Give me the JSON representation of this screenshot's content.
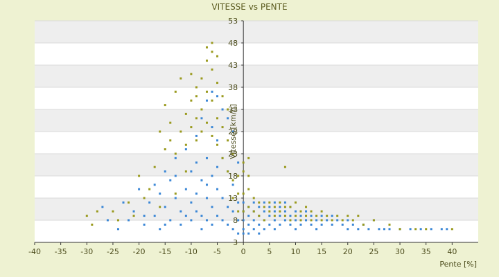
{
  "chart_data": {
    "type": "scatter",
    "title": "VITESSE vs PENTE",
    "xlabel": "Pente [%]",
    "ylabel": "Vitesse [km/h]",
    "xlim": [
      -40,
      45
    ],
    "ylim": [
      3,
      53
    ],
    "x_ticks": [
      "-40",
      "-35",
      "-30",
      "-25",
      "-20",
      "-15",
      "-10",
      "-5",
      "0",
      "5",
      "10",
      "15",
      "20",
      "25",
      "30",
      "35",
      "40"
    ],
    "y_ticks": [
      "3",
      "8",
      "13",
      "18",
      "23",
      "28",
      "33",
      "38",
      "43",
      "48",
      "53"
    ],
    "grid": true,
    "legend": "none",
    "colors": {
      "background": "#eef2d2",
      "plot_band_light": "#ffffff",
      "plot_band_dark": "#eeeeee",
      "series_blue": "#3b87d6",
      "series_olive": "#9a9a1e"
    },
    "series": [
      {
        "color": "#3b87d6",
        "points": [
          [
            -24,
            6
          ],
          [
            -22,
            8
          ],
          [
            -21,
            10
          ],
          [
            -19,
            7
          ],
          [
            -18,
            12
          ],
          [
            -17,
            9
          ],
          [
            -16,
            14
          ],
          [
            -16,
            6
          ],
          [
            -15,
            19
          ],
          [
            -15,
            11
          ],
          [
            -14,
            8
          ],
          [
            -14,
            17
          ],
          [
            -13,
            13
          ],
          [
            -13,
            22
          ],
          [
            -12,
            10
          ],
          [
            -12,
            7
          ],
          [
            -11,
            15
          ],
          [
            -11,
            24
          ],
          [
            -10,
            12
          ],
          [
            -10,
            19
          ],
          [
            -10,
            8
          ],
          [
            -9,
            27
          ],
          [
            -9,
            14
          ],
          [
            -9,
            10
          ],
          [
            -8,
            31
          ],
          [
            -8,
            17
          ],
          [
            -8,
            9
          ],
          [
            -8,
            6
          ],
          [
            -7,
            35
          ],
          [
            -7,
            22
          ],
          [
            -7,
            13
          ],
          [
            -7,
            8
          ],
          [
            -6,
            37
          ],
          [
            -6,
            29
          ],
          [
            -6,
            18
          ],
          [
            -6,
            11
          ],
          [
            -6,
            7
          ],
          [
            -5,
            36
          ],
          [
            -5,
            26
          ],
          [
            -5,
            15
          ],
          [
            -5,
            9
          ],
          [
            -4,
            33
          ],
          [
            -4,
            22
          ],
          [
            -4,
            13
          ],
          [
            -4,
            8
          ],
          [
            -3,
            31
          ],
          [
            -3,
            19
          ],
          [
            -3,
            11
          ],
          [
            -3,
            7
          ],
          [
            -2,
            28
          ],
          [
            -2,
            16
          ],
          [
            -2,
            10
          ],
          [
            -2,
            6
          ],
          [
            -1,
            21
          ],
          [
            -1,
            12
          ],
          [
            -1,
            8
          ],
          [
            -1,
            5
          ],
          [
            0,
            12
          ],
          [
            0,
            10
          ],
          [
            0,
            8
          ],
          [
            0,
            6
          ],
          [
            0,
            5
          ],
          [
            1,
            11
          ],
          [
            1,
            9
          ],
          [
            1,
            7
          ],
          [
            1,
            5
          ],
          [
            2,
            12
          ],
          [
            2,
            10
          ],
          [
            2,
            8
          ],
          [
            2,
            6
          ],
          [
            3,
            11
          ],
          [
            3,
            9
          ],
          [
            3,
            7
          ],
          [
            3,
            5
          ],
          [
            4,
            12
          ],
          [
            4,
            10
          ],
          [
            4,
            8
          ],
          [
            4,
            6
          ],
          [
            5,
            11
          ],
          [
            5,
            9
          ],
          [
            5,
            7
          ],
          [
            6,
            12
          ],
          [
            6,
            10
          ],
          [
            6,
            8
          ],
          [
            6,
            6
          ],
          [
            7,
            11
          ],
          [
            7,
            9
          ],
          [
            7,
            7
          ],
          [
            8,
            12
          ],
          [
            8,
            10
          ],
          [
            8,
            8
          ],
          [
            9,
            11
          ],
          [
            9,
            9
          ],
          [
            9,
            7
          ],
          [
            10,
            10
          ],
          [
            10,
            8
          ],
          [
            10,
            6
          ],
          [
            11,
            9
          ],
          [
            11,
            7
          ],
          [
            12,
            10
          ],
          [
            12,
            8
          ],
          [
            13,
            9
          ],
          [
            13,
            7
          ],
          [
            14,
            8
          ],
          [
            14,
            6
          ],
          [
            15,
            9
          ],
          [
            15,
            7
          ],
          [
            16,
            8
          ],
          [
            17,
            7
          ],
          [
            17,
            9
          ],
          [
            18,
            8
          ],
          [
            19,
            7
          ],
          [
            20,
            8
          ],
          [
            20,
            6
          ],
          [
            21,
            7
          ],
          [
            22,
            6
          ],
          [
            23,
            7
          ],
          [
            24,
            6
          ],
          [
            25,
            8
          ],
          [
            26,
            6
          ],
          [
            27,
            6
          ],
          [
            28,
            6
          ],
          [
            30,
            6
          ],
          [
            32,
            6
          ],
          [
            34,
            6
          ],
          [
            36,
            6
          ],
          [
            38,
            6
          ],
          [
            39,
            6
          ],
          [
            -27,
            11
          ],
          [
            -26,
            8
          ],
          [
            -23,
            12
          ],
          [
            -20,
            15
          ],
          [
            -19,
            9
          ],
          [
            -17,
            16
          ],
          [
            -15,
            7
          ],
          [
            -13,
            18
          ],
          [
            -11,
            9
          ],
          [
            -9,
            21
          ],
          [
            -7,
            16
          ],
          [
            -5,
            20
          ]
        ]
      },
      {
        "color": "#9a9a1e",
        "points": [
          [
            -30,
            9
          ],
          [
            -29,
            7
          ],
          [
            -25,
            10
          ],
          [
            -22,
            12
          ],
          [
            -20,
            18
          ],
          [
            -18,
            15
          ],
          [
            -17,
            20
          ],
          [
            -16,
            28
          ],
          [
            -15,
            24
          ],
          [
            -15,
            34
          ],
          [
            -14,
            26
          ],
          [
            -14,
            30
          ],
          [
            -13,
            23
          ],
          [
            -13,
            37
          ],
          [
            -12,
            28
          ],
          [
            -12,
            40
          ],
          [
            -11,
            32
          ],
          [
            -11,
            25
          ],
          [
            -10,
            35
          ],
          [
            -10,
            29
          ],
          [
            -10,
            41
          ],
          [
            -9,
            31
          ],
          [
            -9,
            38
          ],
          [
            -9,
            26
          ],
          [
            -8,
            33
          ],
          [
            -8,
            40
          ],
          [
            -8,
            28
          ],
          [
            -7,
            44
          ],
          [
            -7,
            37
          ],
          [
            -7,
            30
          ],
          [
            -7,
            47
          ],
          [
            -6,
            48
          ],
          [
            -6,
            46
          ],
          [
            -6,
            42
          ],
          [
            -6,
            35
          ],
          [
            -6,
            27
          ],
          [
            -5,
            45
          ],
          [
            -5,
            39
          ],
          [
            -5,
            31
          ],
          [
            -5,
            25
          ],
          [
            -4,
            36
          ],
          [
            -4,
            29
          ],
          [
            -4,
            22
          ],
          [
            -3,
            33
          ],
          [
            -3,
            26
          ],
          [
            -3,
            19
          ],
          [
            -2,
            23
          ],
          [
            -2,
            17
          ],
          [
            -2,
            13
          ],
          [
            -1,
            18
          ],
          [
            -1,
            14
          ],
          [
            -1,
            10
          ],
          [
            0,
            19
          ],
          [
            0,
            14
          ],
          [
            0,
            10
          ],
          [
            1,
            22
          ],
          [
            1,
            15
          ],
          [
            1,
            11
          ],
          [
            2,
            13
          ],
          [
            2,
            10
          ],
          [
            3,
            12
          ],
          [
            3,
            9
          ],
          [
            4,
            11
          ],
          [
            4,
            8
          ],
          [
            5,
            12
          ],
          [
            5,
            10
          ],
          [
            6,
            11
          ],
          [
            6,
            9
          ],
          [
            7,
            12
          ],
          [
            7,
            10
          ],
          [
            8,
            11
          ],
          [
            8,
            9
          ],
          [
            8,
            20
          ],
          [
            9,
            11
          ],
          [
            9,
            8
          ],
          [
            10,
            12
          ],
          [
            10,
            9
          ],
          [
            11,
            10
          ],
          [
            11,
            8
          ],
          [
            12,
            11
          ],
          [
            12,
            9
          ],
          [
            13,
            10
          ],
          [
            13,
            8
          ],
          [
            14,
            9
          ],
          [
            15,
            10
          ],
          [
            15,
            8
          ],
          [
            16,
            9
          ],
          [
            17,
            8
          ],
          [
            18,
            9
          ],
          [
            19,
            8
          ],
          [
            20,
            9
          ],
          [
            21,
            8
          ],
          [
            22,
            9
          ],
          [
            23,
            7
          ],
          [
            25,
            8
          ],
          [
            28,
            7
          ],
          [
            30,
            6
          ],
          [
            33,
            6
          ],
          [
            35,
            6
          ],
          [
            40,
            6
          ],
          [
            -9,
            36
          ],
          [
            -11,
            19
          ],
          [
            -13,
            14
          ],
          [
            -16,
            11
          ],
          [
            -19,
            13
          ],
          [
            -21,
            9
          ],
          [
            -24,
            8
          ],
          [
            -28,
            10
          ],
          [
            0,
            21
          ],
          [
            1,
            18
          ]
        ]
      }
    ]
  }
}
